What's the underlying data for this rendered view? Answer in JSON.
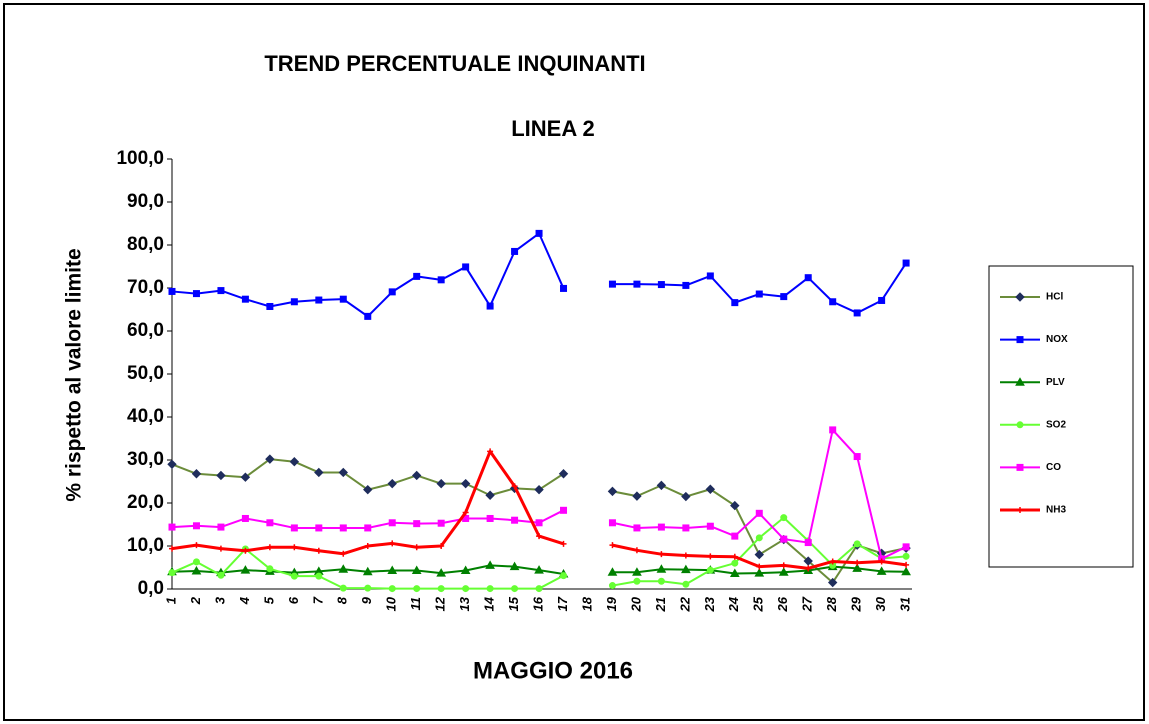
{
  "chart_data": {
    "type": "line",
    "title": "TREND PERCENTUALE  INQUINANTI",
    "subtitle": "LINEA 2",
    "x_label": "MAGGIO 2016",
    "y_label": "% rispetto al valore limite",
    "categories": [
      "1",
      "2",
      "3",
      "4",
      "5",
      "6",
      "7",
      "8",
      "9",
      "10",
      "11",
      "12",
      "13",
      "14",
      "15",
      "16",
      "17",
      "18",
      "19",
      "20",
      "21",
      "22",
      "23",
      "24",
      "25",
      "26",
      "27",
      "28",
      "29",
      "30",
      "31"
    ],
    "ylim": [
      0,
      100
    ],
    "yticks": [
      {
        "value": 0,
        "label": "0,0"
      },
      {
        "value": 10,
        "label": "10,0"
      },
      {
        "value": 20,
        "label": "20,0"
      },
      {
        "value": 30,
        "label": "30,0"
      },
      {
        "value": 40,
        "label": "40,0"
      },
      {
        "value": 50,
        "label": "50,0"
      },
      {
        "value": 60,
        "label": "60,0"
      },
      {
        "value": 70,
        "label": "70,0"
      },
      {
        "value": 80,
        "label": "80,0"
      },
      {
        "value": 90,
        "label": "90,0"
      },
      {
        "value": 100,
        "label": "100,0"
      }
    ],
    "grid": false,
    "legend": "right",
    "series": [
      {
        "name": "HCl",
        "color": "#6b8c3a",
        "marker_color": "#1f2d5c",
        "marker": "diamond",
        "values": [
          29,
          26.8,
          26.4,
          26,
          30.2,
          29.6,
          27.1,
          27.1,
          23.1,
          24.5,
          26.4,
          24.5,
          24.5,
          21.8,
          23.4,
          23.1,
          26.8,
          null,
          22.7,
          21.6,
          24.1,
          21.5,
          23.2,
          19.4,
          8,
          11.5,
          6.5,
          1.5,
          10.2,
          8.3,
          9.5
        ]
      },
      {
        "name": "NOX",
        "color": "#0000ff",
        "marker_color": "#0000ff",
        "marker": "square",
        "values": [
          69.2,
          68.7,
          69.4,
          67.4,
          65.7,
          66.8,
          67.2,
          67.4,
          63.4,
          69.1,
          72.7,
          71.9,
          74.9,
          65.8,
          78.5,
          82.7,
          69.9,
          null,
          70.9,
          70.9,
          70.8,
          70.6,
          72.8,
          66.6,
          68.6,
          68,
          72.4,
          66.8,
          64.2,
          67.1,
          75.8
        ]
      },
      {
        "name": "PLV",
        "color": "#008000",
        "marker_color": "#008000",
        "marker": "triangle",
        "values": [
          4,
          4.2,
          3.8,
          4.4,
          4.1,
          3.8,
          4.1,
          4.6,
          4,
          4.3,
          4.3,
          3.7,
          4.3,
          5.5,
          5.2,
          4.4,
          3.5,
          null,
          3.9,
          3.9,
          4.6,
          4.5,
          4.4,
          3.6,
          3.7,
          3.9,
          4.3,
          5.2,
          4.8,
          4.1,
          4
        ]
      },
      {
        "name": "SO2",
        "color": "#66ff33",
        "marker_color": "#66ff33",
        "marker": "circle",
        "values": [
          3.8,
          6.3,
          3.2,
          9.3,
          4.7,
          3,
          3,
          0.2,
          0.2,
          0.1,
          0.1,
          0.1,
          0.1,
          0.1,
          0.1,
          0.1,
          3.1,
          null,
          0.8,
          1.8,
          1.8,
          1.1,
          4.4,
          6,
          11.9,
          16.6,
          11.2,
          5.5,
          10.5,
          7.1,
          7.6
        ]
      },
      {
        "name": "CO",
        "color": "#ff00ff",
        "marker_color": "#ff00ff",
        "marker": "square",
        "values": [
          14.4,
          14.7,
          14.4,
          16.4,
          15.4,
          14.2,
          14.2,
          14.2,
          14.2,
          15.4,
          15.2,
          15.3,
          16.4,
          16.4,
          16,
          15.4,
          18.3,
          null,
          15.4,
          14.2,
          14.4,
          14.2,
          14.6,
          12.3,
          17.6,
          11.6,
          10.8,
          37,
          30.8,
          7,
          9.8
        ]
      },
      {
        "name": "NH3",
        "color": "#ff0000",
        "marker_color": "#ff0000",
        "marker": "plus",
        "values": [
          9.4,
          10.2,
          9.4,
          8.9,
          9.7,
          9.7,
          8.9,
          8.2,
          10,
          10.6,
          9.7,
          10,
          17.8,
          32,
          23.9,
          12.3,
          10.5,
          null,
          10.2,
          9,
          8.1,
          7.8,
          7.6,
          7.5,
          5.2,
          5.5,
          4.8,
          6.4,
          6.1,
          6.4,
          5.6
        ]
      }
    ]
  }
}
